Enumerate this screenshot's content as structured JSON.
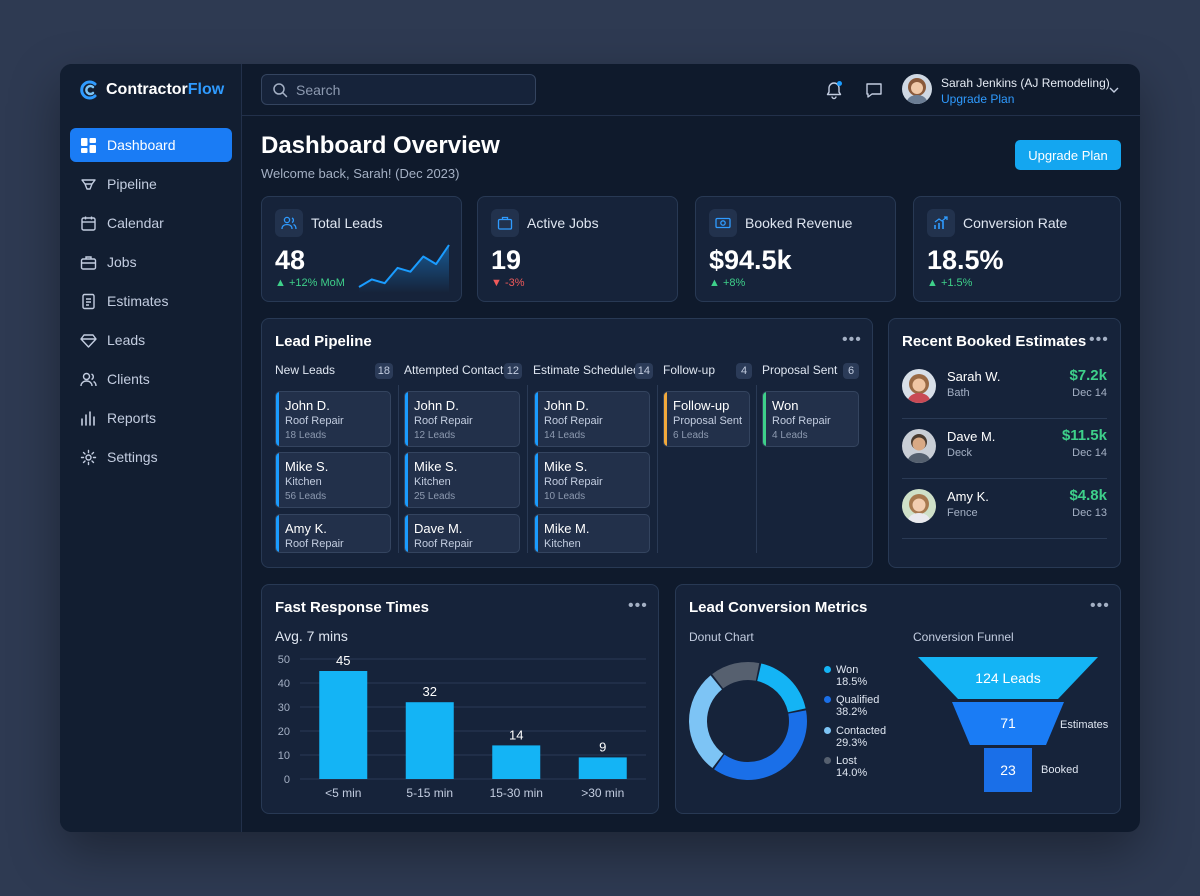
{
  "brand": {
    "name_part1": "Contractor",
    "name_part2": "Flow"
  },
  "sidebar": {
    "items": [
      {
        "label": "Dashboard",
        "icon": "dashboard-icon",
        "active": true
      },
      {
        "label": "Pipeline",
        "icon": "pipeline-icon"
      },
      {
        "label": "Calendar",
        "icon": "calendar-icon"
      },
      {
        "label": "Jobs",
        "icon": "briefcase-icon"
      },
      {
        "label": "Estimates",
        "icon": "document-icon"
      },
      {
        "label": "Leads",
        "icon": "diamond-icon"
      },
      {
        "label": "Clients",
        "icon": "users-icon"
      },
      {
        "label": "Reports",
        "icon": "bar-chart-icon"
      },
      {
        "label": "Settings",
        "icon": "gear-icon"
      }
    ]
  },
  "topbar": {
    "search_placeholder": "Search",
    "user_name": "Sarah Jenkins (AJ Remodeling)",
    "user_plan": "Upgrade Plan"
  },
  "header": {
    "title": "Dashboard Overview",
    "subtitle": "Welcome back, Sarah! (Dec 2023)",
    "upgrade_label": "Upgrade Plan"
  },
  "kpis": [
    {
      "label": "Total Leads",
      "value": "48",
      "change": "+12% MoM",
      "direction": "up",
      "sparkline": [
        3,
        5,
        4,
        8,
        7,
        11,
        9,
        14
      ]
    },
    {
      "label": "Active Jobs",
      "value": "19",
      "change": "-3%",
      "direction": "down"
    },
    {
      "label": "Booked Revenue",
      "value": "$94.5k",
      "change": "+8%",
      "direction": "up"
    },
    {
      "label": "Conversion Rate",
      "value": "18.5%",
      "change": "+1.5%",
      "direction": "up"
    }
  ],
  "pipeline": {
    "title": "Lead Pipeline",
    "columns": [
      {
        "name": "New Leads",
        "count": "18",
        "cards": [
          {
            "name": "John D.",
            "service": "Roof Repair",
            "leads": "18 Leads"
          },
          {
            "name": "Mike S.",
            "service": "Kitchen",
            "leads": "56 Leads"
          },
          {
            "name": "Amy K.",
            "service": "Roof Repair",
            "leads": ""
          }
        ]
      },
      {
        "name": "Attempted Contact",
        "count": "12",
        "cards": [
          {
            "name": "John D.",
            "service": "Roof Repair",
            "leads": "12 Leads"
          },
          {
            "name": "Mike S.",
            "service": "Kitchen",
            "leads": "25 Leads"
          },
          {
            "name": "Dave M.",
            "service": "Roof Repair",
            "leads": ""
          }
        ]
      },
      {
        "name": "Estimate Scheduled",
        "count": "14",
        "cards": [
          {
            "name": "John D.",
            "service": "Roof Repair",
            "leads": "14 Leads"
          },
          {
            "name": "Mike S.",
            "service": "Roof Repair",
            "leads": "10 Leads"
          },
          {
            "name": "Mike M.",
            "service": "Kitchen",
            "leads": ""
          }
        ]
      },
      {
        "name": "Follow-up",
        "count": "4",
        "cards": [
          {
            "name": "Follow-up",
            "service": "Proposal Sent",
            "leads": "6 Leads"
          }
        ]
      },
      {
        "name": "Proposal Sent",
        "count": "6",
        "cards": [
          {
            "name": "Won",
            "service": "Roof Repair",
            "leads": "4 Leads"
          }
        ]
      }
    ]
  },
  "recent_estimates": {
    "title": "Recent Booked Estimates",
    "items": [
      {
        "name": "Sarah W.",
        "type": "Bath",
        "amount": "$7.2k",
        "date": "Dec 14"
      },
      {
        "name": "Dave M.",
        "type": "Deck",
        "amount": "$11.5k",
        "date": "Dec 14"
      },
      {
        "name": "Amy K.",
        "type": "Fence",
        "amount": "$4.8k",
        "date": "Dec 13"
      }
    ]
  },
  "response_times": {
    "title": "Fast Response Times",
    "subtitle": "Avg. 7 mins"
  },
  "conversion": {
    "title": "Lead Conversion Metrics",
    "donut_label": "Donut Chart",
    "funnel_label": "Conversion Funnel",
    "funnel": [
      {
        "label": "124 Leads",
        "side": ""
      },
      {
        "label": "71",
        "side": "Estimates"
      },
      {
        "label": "23",
        "side": "Booked"
      }
    ]
  },
  "chart_data": [
    {
      "type": "bar",
      "categories": [
        "<5 min",
        "5-15 min",
        "15-30 min",
        ">30 min"
      ],
      "values": [
        45,
        32,
        14,
        9
      ],
      "ylim": [
        0,
        50
      ],
      "yticks": [
        0,
        10,
        20,
        30,
        40,
        50
      ],
      "grid": true,
      "color": "#14b4f5"
    },
    {
      "type": "pie",
      "categories": [
        "Won",
        "Qualified",
        "Contacted",
        "Lost"
      ],
      "values": [
        18.5,
        38.2,
        29.3,
        14.0
      ],
      "labels": [
        "18.5%",
        "38.2%",
        "29.3%",
        "14.0%"
      ],
      "colors": [
        "#14b4f5",
        "#1a6fe8",
        "#7dc4f5",
        "#56606f"
      ]
    }
  ],
  "colors": {
    "accent": "#1a7cf5",
    "positive": "#3ed08a",
    "negative": "#f05a5a",
    "bar": "#14b4f5"
  }
}
